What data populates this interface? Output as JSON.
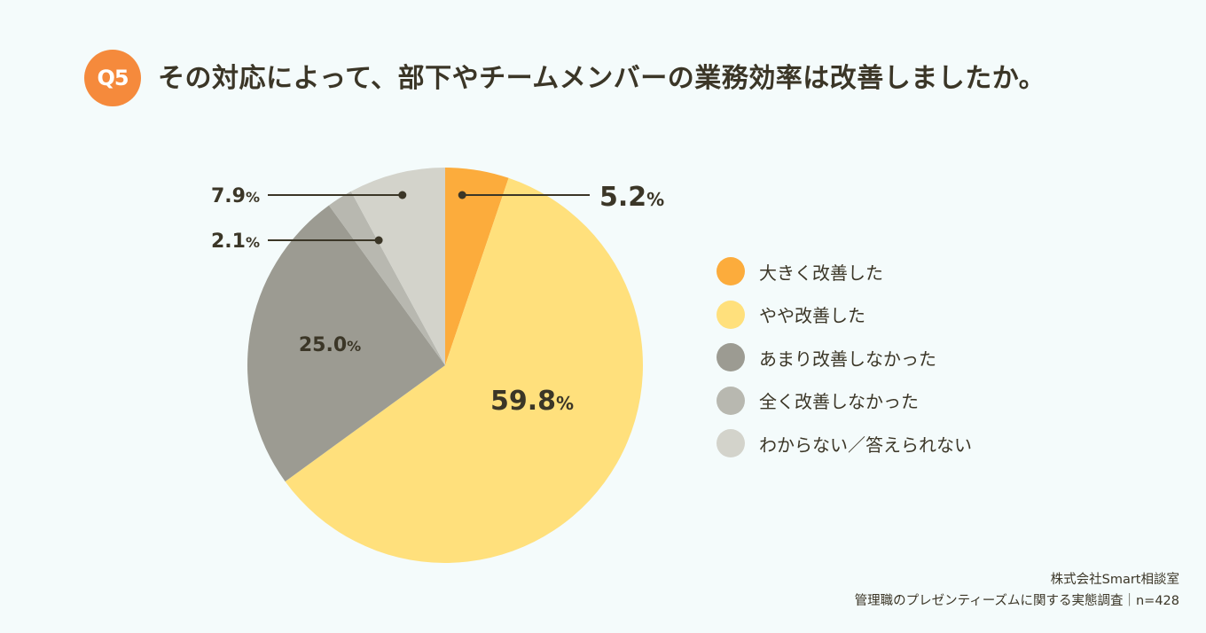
{
  "header": {
    "badge": "Q5",
    "title": "その対応によって、部下やチームメンバーの業務効率は改善しましたか。"
  },
  "chart_data": {
    "type": "pie",
    "title": "その対応によって、部下やチームメンバーの業務効率は改善しましたか。",
    "unit": "%",
    "slices": [
      {
        "name": "大きく改善した",
        "value": 5.2,
        "label": "5.2",
        "color": "#fcac3c"
      },
      {
        "name": "やや改善した",
        "value": 59.8,
        "label": "59.8",
        "color": "#ffe07c"
      },
      {
        "name": "あまり改善しなかった",
        "value": 25.0,
        "label": "25.0",
        "color": "#9c9b92"
      },
      {
        "name": "全く改善しなかった",
        "value": 2.1,
        "label": "2.1",
        "color": "#b8b8b0"
      },
      {
        "name": "わからない／答えられない",
        "value": 7.9,
        "label": "7.9",
        "color": "#d3d3cb"
      }
    ],
    "legend_position": "right"
  },
  "footer": {
    "source_line1": "株式会社Smart相談室",
    "source_line2": "管理職のプレゼンティーズムに関する実態調査｜n=428"
  }
}
